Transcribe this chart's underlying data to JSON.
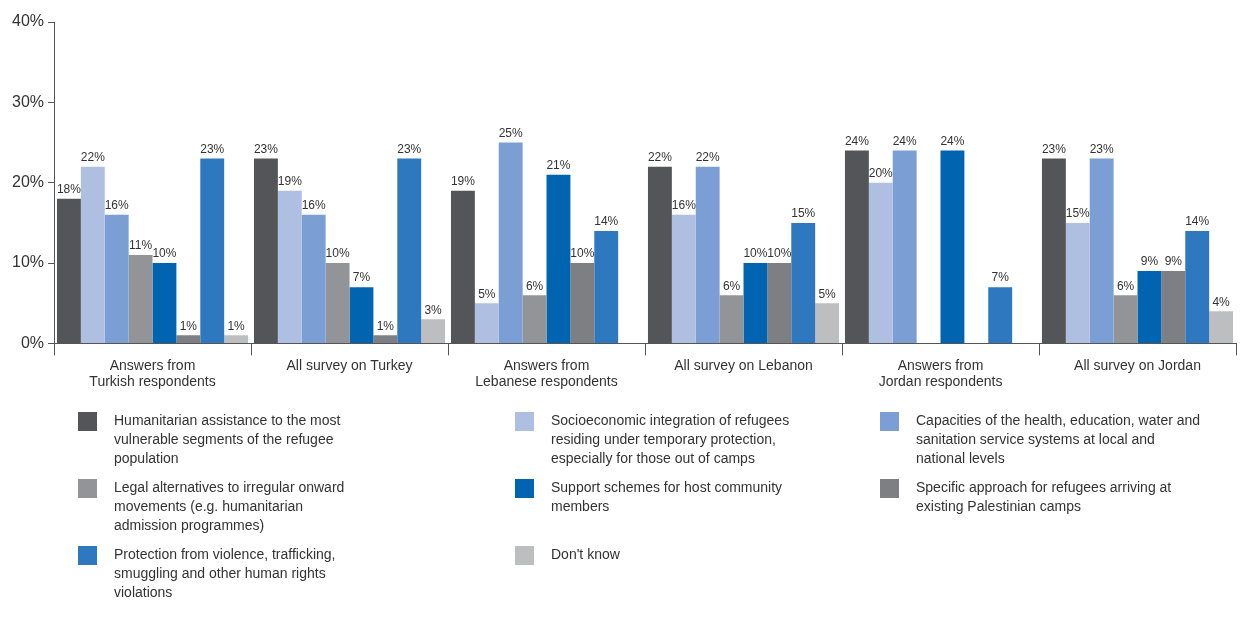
{
  "chart_data": {
    "type": "bar",
    "categories": [
      "Answers from\nTurkish respondents",
      "All survey on Turkey",
      "Answers from\nLebanese respondents",
      "All survey on Lebanon",
      "Answers from\nJordan respondents",
      "All survey on Jordan"
    ],
    "series": [
      {
        "name": "Humanitarian assistance to the most vulnerable segments of the refugee population",
        "color": "#545558",
        "values": [
          18,
          23,
          19,
          22,
          24,
          23
        ],
        "value_labels": [
          "18%",
          "23%",
          "19%",
          "22%",
          "24%",
          "23%"
        ]
      },
      {
        "name": "Socioeconomic integration of refugees residing under temporary protection, especially for those out of camps",
        "color": "#aebfe2",
        "values": [
          22,
          19,
          5,
          16,
          20,
          15
        ],
        "value_labels": [
          "22%",
          "19%",
          "5%",
          "16%",
          "20%",
          "15%"
        ]
      },
      {
        "name": "Capacities of the health, education, water and sanitation service systems at local and national levels",
        "color": "#7b9ed4",
        "values": [
          16,
          16,
          25,
          22,
          24,
          23
        ],
        "value_labels": [
          "16%",
          "16%",
          "25%",
          "22%",
          "24%",
          "23%"
        ]
      },
      {
        "name": "Legal alternatives to irregular onward movements (e.g. humanitarian admission programmes)",
        "color": "#939497",
        "values": [
          11,
          10,
          6,
          6,
          null,
          6
        ],
        "value_labels": [
          "11%",
          "10%",
          "6%",
          "6%",
          null,
          "6%"
        ]
      },
      {
        "name": "Support schemes for host community members",
        "color": "#0064b0",
        "values": [
          10,
          7,
          21,
          10,
          24,
          9
        ],
        "value_labels": [
          "10%",
          "7%",
          "21%",
          "10%",
          "24%",
          "9%"
        ]
      },
      {
        "name": "Specific approach for refugees arriving at existing Palestinian camps",
        "color": "#7e7f82",
        "values": [
          1,
          1,
          10,
          10,
          null,
          9
        ],
        "value_labels": [
          "1%",
          "1%",
          "10%",
          "10%",
          null,
          "9%"
        ]
      },
      {
        "name": "Protection from violence, trafficking, smuggling and other human rights violations",
        "color": "#2e78c0",
        "values": [
          23,
          23,
          14,
          15,
          7,
          14
        ],
        "value_labels": [
          "23%",
          "23%",
          "14%",
          "15%",
          "7%",
          "14%"
        ]
      },
      {
        "name": "Don't know",
        "color": "#bdbebf",
        "values": [
          1,
          3,
          null,
          5,
          null,
          4
        ],
        "value_labels": [
          "1%",
          "3%",
          null,
          "5%",
          null,
          "4%"
        ]
      }
    ],
    "ylim": [
      0,
      40
    ],
    "yticks": [
      {
        "value": 0,
        "label": "0%"
      },
      {
        "value": 10,
        "label": "10%"
      },
      {
        "value": 20,
        "label": "20%"
      },
      {
        "value": 30,
        "label": "30%"
      },
      {
        "value": 40,
        "label": "40%"
      }
    ],
    "grid": false,
    "legend": "bottom"
  }
}
